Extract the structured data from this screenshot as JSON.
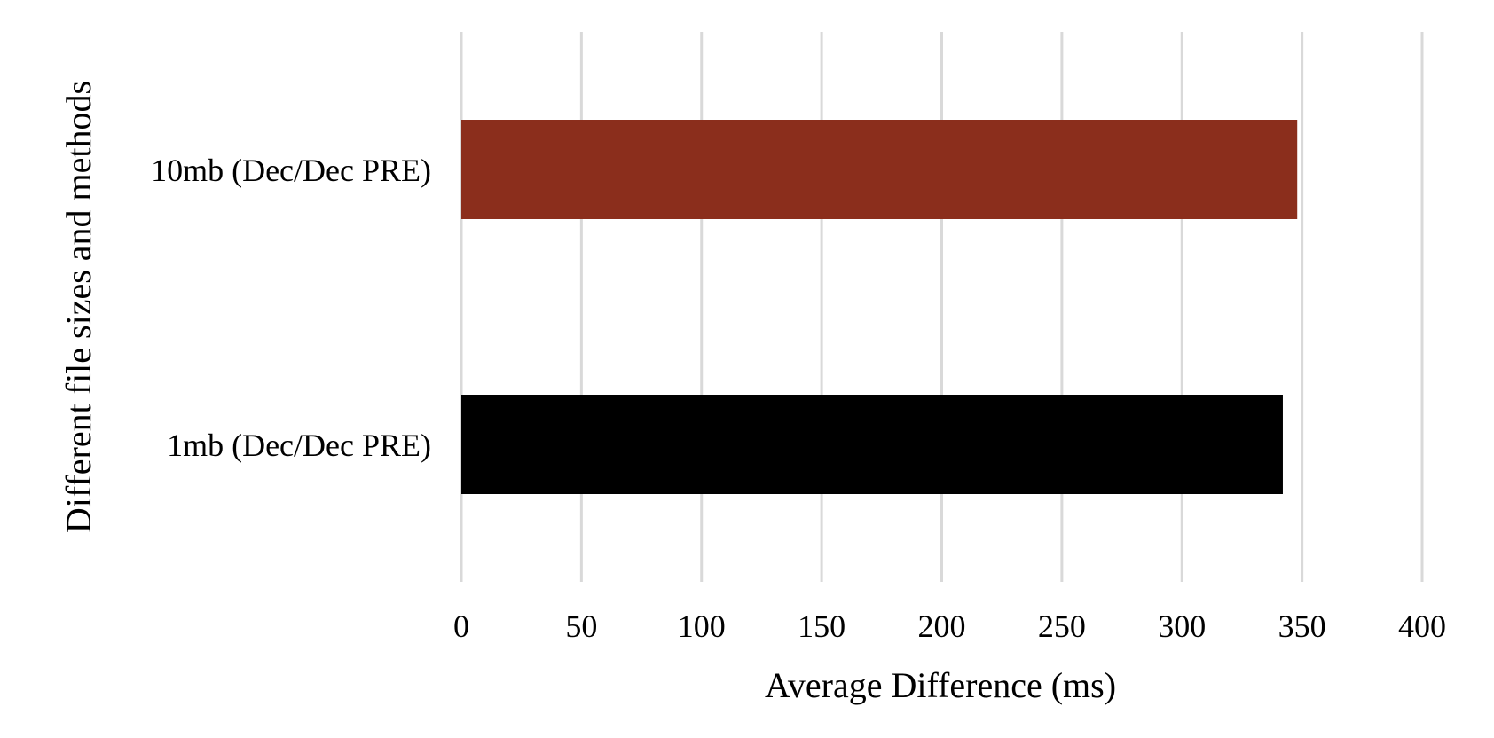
{
  "chart_data": {
    "type": "bar",
    "orientation": "horizontal",
    "categories": [
      "1mb (Dec/Dec PRE)",
      "10mb (Dec/Dec PRE)"
    ],
    "values": [
      342,
      348
    ],
    "colors": [
      "#000000",
      "#8B2E1C"
    ],
    "xlabel": "Average Difference (ms)",
    "ylabel": "Different file sizes and methods",
    "xlim": [
      0,
      400
    ],
    "xticks": [
      "0",
      "50",
      "100",
      "150",
      "200",
      "250",
      "300",
      "350",
      "400"
    ],
    "grid": "vertical",
    "legend": "none"
  }
}
